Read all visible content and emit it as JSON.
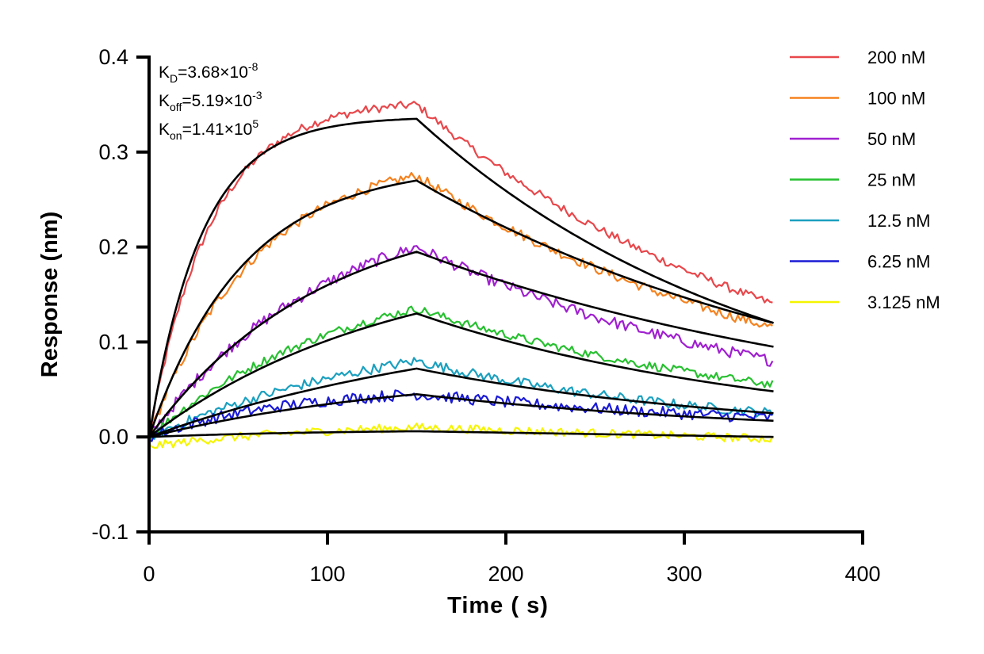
{
  "chart_data": {
    "type": "line",
    "title": "",
    "xlabel": "Time ( s)",
    "ylabel": "Response (nm)",
    "xlim": [
      0,
      400
    ],
    "ylim": [
      -0.1,
      0.4
    ],
    "xticks": [
      0,
      100,
      200,
      300,
      400
    ],
    "xtick_labels": [
      "0",
      "100",
      "200",
      "300",
      "400"
    ],
    "yticks": [
      -0.1,
      0.0,
      0.1,
      0.2,
      0.3,
      0.4
    ],
    "ytick_labels": [
      "-0.1",
      "0.0",
      "0.1",
      "0.2",
      "0.3",
      "0.4"
    ],
    "grid": false,
    "legend_position": "top-right",
    "annotations": [
      {
        "main": "K",
        "sub": "D",
        "rest": "=3.68×10",
        "sup": "-8"
      },
      {
        "main": "K",
        "sub": "off",
        "rest": "=5.19×10",
        "sup": "-3"
      },
      {
        "main": "K",
        "sub": "on",
        "rest": "=1.41×10",
        "sup": "5"
      }
    ],
    "kinetics": {
      "association_end_s": 150,
      "run_end_s": 350,
      "kon": 141000,
      "koff": 0.00519,
      "KD": 3.68e-08
    },
    "series": [
      {
        "name": "200 nM",
        "color": "#e8474b",
        "x": [
          0,
          50,
          100,
          150,
          200,
          250,
          300,
          350
        ],
        "y": [
          0.0,
          0.27,
          0.325,
          0.35,
          0.26,
          0.2,
          0.165,
          0.14
        ],
        "fit_y": [
          0.0,
          0.275,
          0.32,
          0.335,
          0.26,
          0.2,
          0.155,
          0.12
        ]
      },
      {
        "name": "100 nM",
        "color": "#f5821f",
        "x": [
          0,
          50,
          100,
          150,
          200,
          250,
          300,
          350
        ],
        "y": [
          0.0,
          0.17,
          0.24,
          0.275,
          0.21,
          0.165,
          0.135,
          0.115
        ],
        "fit_y": [
          0.0,
          0.175,
          0.235,
          0.27,
          0.21,
          0.165,
          0.135,
          0.12
        ]
      },
      {
        "name": "50 nM",
        "color": "#a020d0",
        "x": [
          0,
          50,
          100,
          150,
          200,
          250,
          300,
          350
        ],
        "y": [
          0.0,
          0.1,
          0.165,
          0.2,
          0.14,
          0.11,
          0.09,
          0.08
        ],
        "fit_y": [
          0.0,
          0.1,
          0.16,
          0.195,
          0.15,
          0.12,
          0.105,
          0.095
        ]
      },
      {
        "name": "25 nM",
        "color": "#27c030",
        "x": [
          0,
          50,
          100,
          150,
          200,
          250,
          300,
          350
        ],
        "y": [
          0.0,
          0.065,
          0.11,
          0.135,
          0.1,
          0.08,
          0.065,
          0.055
        ],
        "fit_y": [
          0.0,
          0.06,
          0.105,
          0.13,
          0.1,
          0.08,
          0.06,
          0.048
        ]
      },
      {
        "name": "12.5 nM",
        "color": "#1ba0bf",
        "x": [
          0,
          50,
          100,
          150,
          200,
          250,
          300,
          350
        ],
        "y": [
          0.0,
          0.035,
          0.06,
          0.08,
          0.055,
          0.045,
          0.035,
          0.025
        ],
        "fit_y": [
          0.0,
          0.03,
          0.055,
          0.072,
          0.055,
          0.042,
          0.032,
          0.025
        ]
      },
      {
        "name": "6.25 nM",
        "color": "#1a1ad6",
        "x": [
          0,
          50,
          100,
          150,
          200,
          250,
          300,
          350
        ],
        "y": [
          0.0,
          0.025,
          0.04,
          0.045,
          0.04,
          0.03,
          0.025,
          0.02
        ],
        "fit_y": [
          0.0,
          0.02,
          0.035,
          0.045,
          0.037,
          0.03,
          0.023,
          0.017
        ]
      },
      {
        "name": "3.125 nM",
        "color": "#f5f500",
        "x": [
          0,
          50,
          100,
          150,
          200,
          250,
          300,
          350
        ],
        "y": [
          -0.01,
          0.0,
          0.008,
          0.01,
          0.005,
          0.0,
          0.0,
          -0.002
        ],
        "fit_y": [
          0.0,
          0.003,
          0.005,
          0.006,
          0.004,
          0.003,
          0.002,
          0.0
        ]
      }
    ],
    "fit_color": "#000000"
  }
}
